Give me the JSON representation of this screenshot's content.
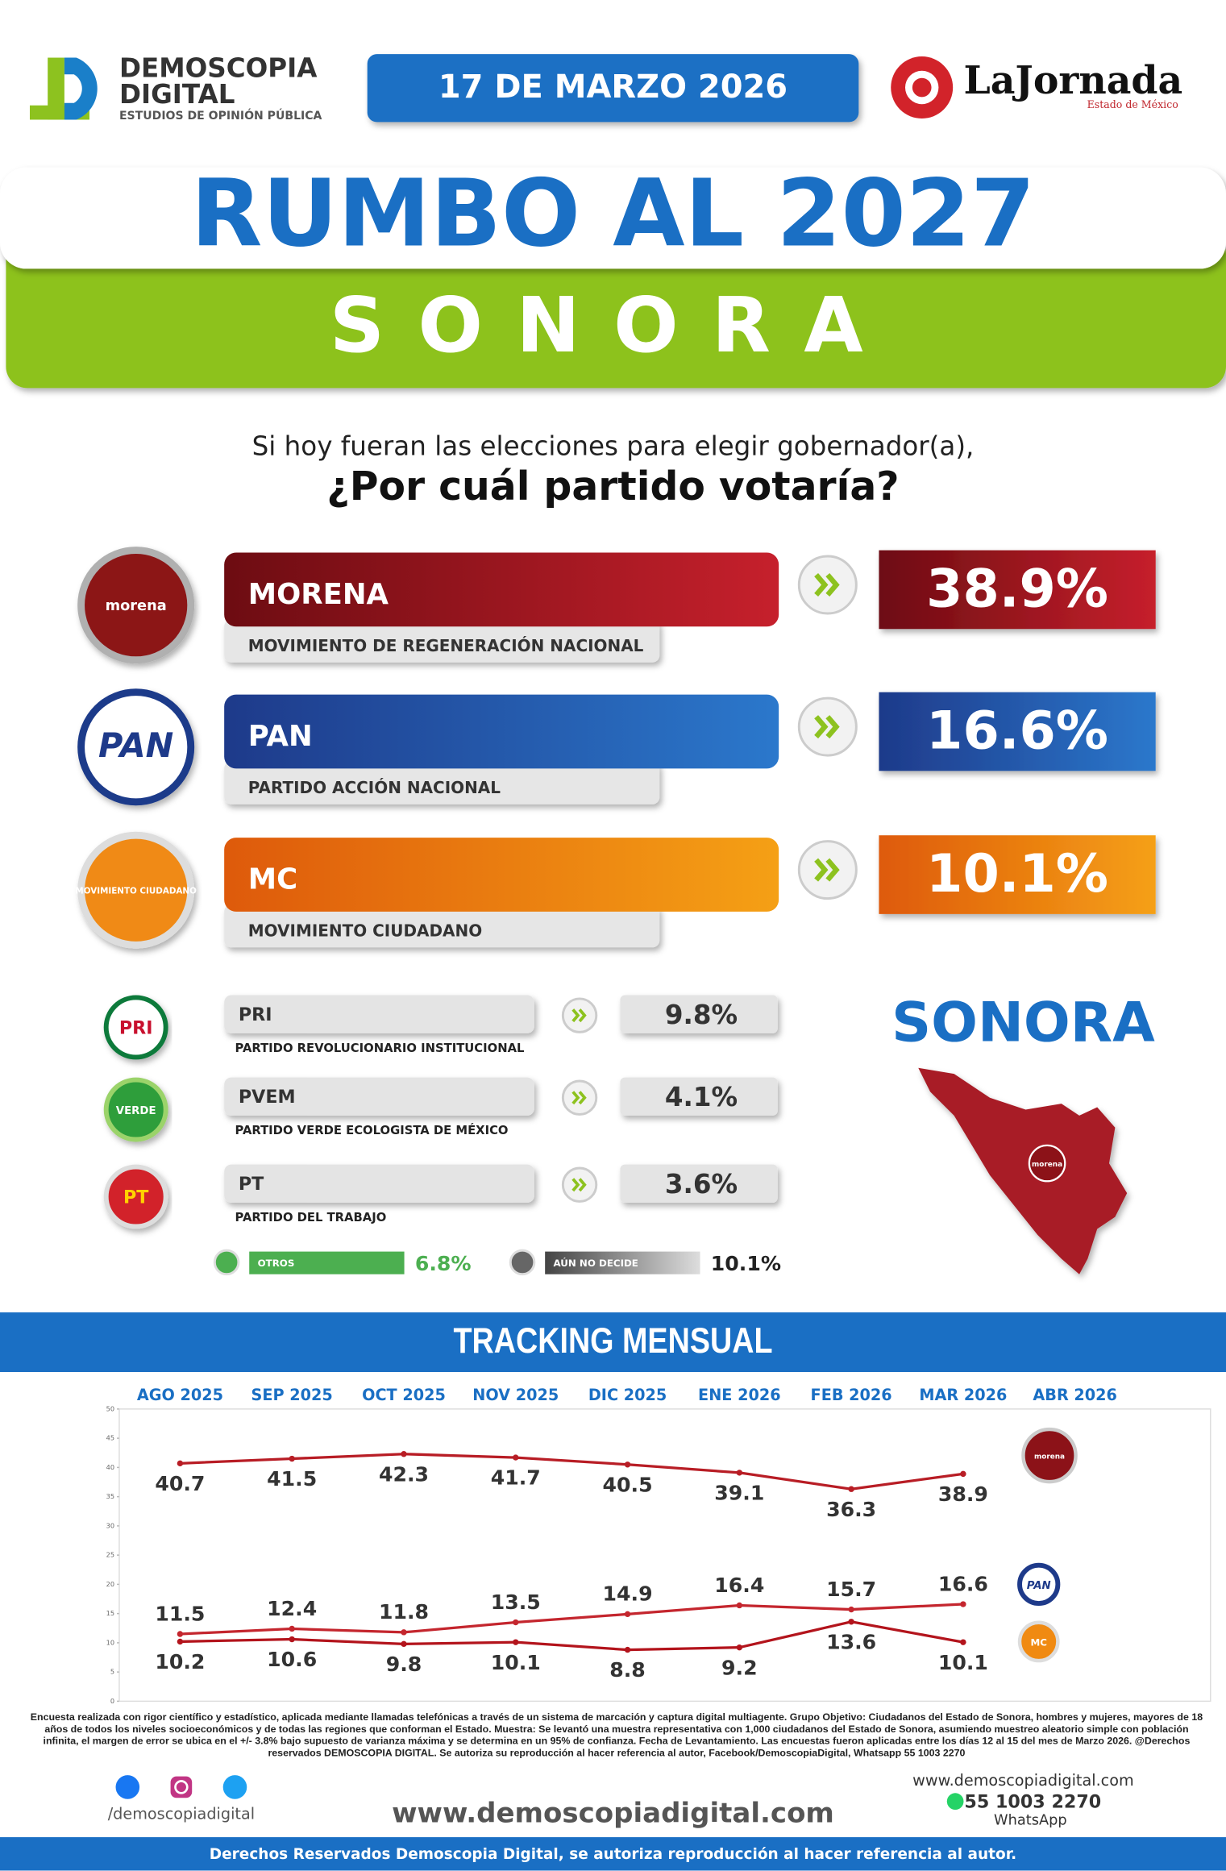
{
  "header": {
    "brand_line1": "DEMOSCOPIA",
    "brand_line2": "DIGITAL",
    "brand_tagline": "ESTUDIOS DE OPINIÓN PÚBLICA",
    "date": "17 DE MARZO 2026",
    "partner": "LaJornada",
    "partner_sub": "Estado de México"
  },
  "banner": {
    "title": "RUMBO AL 2027",
    "subtitle": "SONORA"
  },
  "question": {
    "line1": "Si hoy fueran las elecciones para elegir gobernador(a),",
    "line2": "¿Por cuál partido votaría?"
  },
  "main_parties": [
    {
      "logo": "morena",
      "abbr": "MORENA",
      "name": "MOVIMIENTO DE REGENERACIÓN NACIONAL",
      "result": "38.9%"
    },
    {
      "logo": "PAN",
      "abbr": "PAN",
      "name": "PARTIDO ACCIÓN NACIONAL",
      "result": "16.6%"
    },
    {
      "logo": "MOVIMIENTO CIUDADANO",
      "abbr": "MC",
      "name": "MOVIMIENTO CIUDADANO",
      "result": "10.1%"
    }
  ],
  "minor_parties": [
    {
      "logo": "PRI",
      "abbr": "PRI",
      "name": "PARTIDO REVOLUCIONARIO INSTITUCIONAL",
      "result": "9.8%"
    },
    {
      "logo": "VERDE",
      "abbr": "PVEM",
      "name": "PARTIDO VERDE ECOLOGISTA DE MÉXICO",
      "result": "4.1%"
    },
    {
      "logo": "PT",
      "abbr": "PT",
      "name": "PARTIDO DEL TRABAJO",
      "result": "3.6%"
    }
  ],
  "others": [
    {
      "label": "OTROS",
      "result": "6.8%"
    },
    {
      "label": "AÚN NO DECIDE",
      "result": "10.1%"
    }
  ],
  "map": {
    "title": "SONORA",
    "winner": "morena"
  },
  "chart_data": {
    "type": "line",
    "title": "TRACKING MENSUAL",
    "categories": [
      "AGO 2025",
      "SEP 2025",
      "OCT 2025",
      "NOV 2025",
      "DIC 2025",
      "ENE 2026",
      "FEB 2026",
      "MAR 2026",
      "ABR 2026"
    ],
    "series": [
      {
        "name": "morena",
        "color": "#b81d25",
        "values": [
          40.7,
          41.5,
          42.3,
          41.7,
          40.5,
          39.1,
          36.3,
          38.9,
          null
        ]
      },
      {
        "name": "PAN",
        "color": "#c4262e",
        "values": [
          11.5,
          12.4,
          11.8,
          13.5,
          14.9,
          16.4,
          15.7,
          16.6,
          null
        ]
      },
      {
        "name": "MC",
        "color": "#b3141c",
        "values": [
          10.2,
          10.6,
          9.8,
          10.1,
          8.8,
          9.2,
          13.6,
          10.1,
          null
        ]
      }
    ],
    "ylim": [
      0,
      50
    ],
    "yticks": [
      0,
      5,
      10,
      15,
      20,
      25,
      30,
      35,
      40,
      45,
      50
    ],
    "grid": false
  },
  "methodology": "Encuesta realizada con rigor científico y estadístico, aplicada mediante llamadas telefónicas a través de un sistema de marcación y captura digital multiagente. Grupo Objetivo: Ciudadanos del Estado de Sonora, hombres y mujeres, mayores de 18 años de todos los niveles socioeconómicos y de todas las regiones que conforman el Estado. Muestra: Se levantó una muestra representativa con 1,000 ciudadanos del Estado de Sonora, asumiendo muestreo aleatorio simple con población infinita, el margen de error se ubica en el +/- 3.8% bajo supuesto de varianza máxima y se determina en un 95% de confianza. Fecha de Levantamiento. Las encuestas fueron aplicadas entre los días 12 al 15 del mes de Marzo 2026. @Derechos reservados DEMOSCOPIA DIGITAL. Se autoriza su reproducción al hacer referencia al autor, Facebook/DemoscopiaDigital, Whatsapp 55 1003 2270",
  "footer": {
    "social_handle": "/demoscopiadigital",
    "website": "www.demoscopiadigital.com",
    "website_small": "www.demoscopiadigital.com",
    "phone": "55 1003 2270",
    "phone_label": "WhatsApp",
    "rights": "Derechos Reservados Demoscopia Digital, se autoriza reproducción al hacer referencia al autor."
  }
}
